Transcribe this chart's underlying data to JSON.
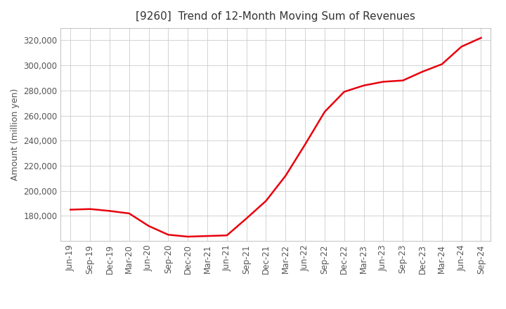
{
  "title": "[9260]  Trend of 12-Month Moving Sum of Revenues",
  "ylabel": "Amount (million yen)",
  "line_color": "#e8000d",
  "background_color": "#ffffff",
  "grid_color": "#cccccc",
  "x_labels": [
    "Jun-19",
    "Sep-19",
    "Dec-19",
    "Mar-20",
    "Jun-20",
    "Sep-20",
    "Dec-20",
    "Mar-21",
    "Jun-21",
    "Sep-21",
    "Dec-21",
    "Mar-22",
    "Jun-22",
    "Sep-22",
    "Dec-22",
    "Mar-23",
    "Jun-23",
    "Sep-23",
    "Dec-23",
    "Mar-24",
    "Jun-24",
    "Sep-24"
  ],
  "y_values": [
    185000,
    185500,
    184000,
    182000,
    172000,
    165000,
    163500,
    164000,
    164500,
    178000,
    192000,
    212000,
    237000,
    263000,
    279000,
    284000,
    287000,
    288000,
    295000,
    301000,
    315000,
    322000
  ],
  "ylim": [
    160000,
    330000
  ],
  "yticks": [
    180000,
    200000,
    220000,
    240000,
    260000,
    280000,
    300000,
    320000
  ],
  "title_fontsize": 11,
  "axis_fontsize": 9,
  "tick_fontsize": 8.5
}
